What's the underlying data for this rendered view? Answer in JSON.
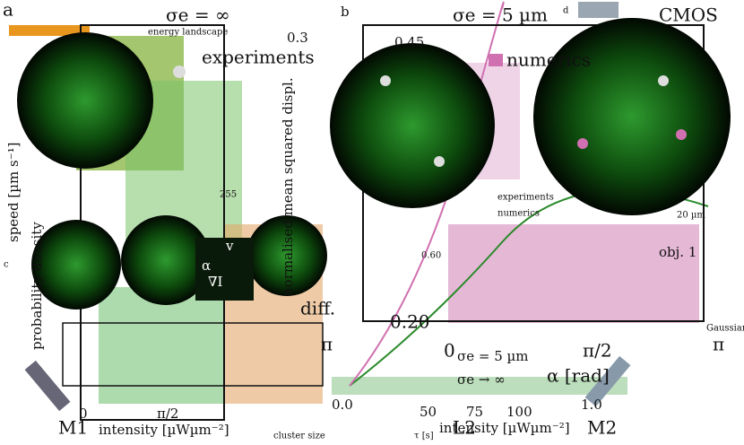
{
  "labels": [
    "σe = ∞",
    "σe = 5 µm",
    "CMOS",
    "numerics",
    "0.45",
    "0.3",
    "experiments",
    "energy landscape",
    "0.60",
    "0.20",
    "0",
    "π/2",
    "π",
    "α [rad]",
    "σe = 5 µm",
    "σe → ∞",
    "intensity [µWµm⁻²]",
    "L2",
    "M2",
    "M1",
    "1.0",
    "0.0",
    "50",
    "75",
    "100",
    "obj. 1",
    "20 µm",
    "Gaussian",
    "experiments",
    "numerics",
    "diff.",
    "cluster size",
    "normalised mean squared displ.",
    "probability density",
    "speed [µm s⁻¹]",
    "255",
    "intensity [µWµm⁻²]",
    "π/2",
    "0",
    "v",
    "α",
    "∇I",
    "a",
    "b",
    "d",
    "c",
    "π",
    "τ [s]"
  ]
}
